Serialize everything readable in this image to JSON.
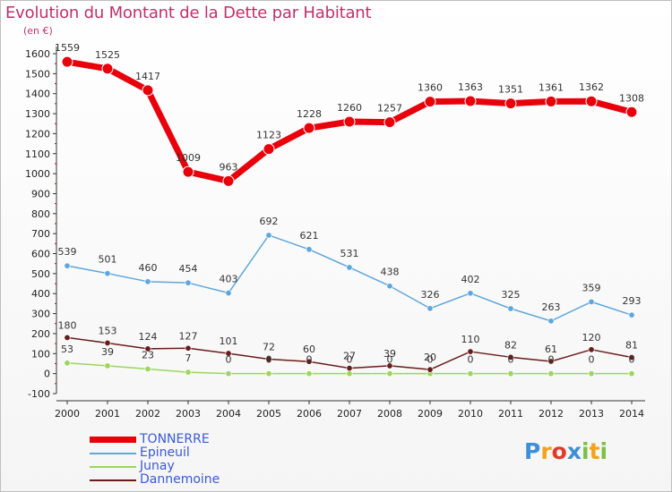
{
  "title": "Evolution du Montant de la Dette par Habitant",
  "unit": "(en €)",
  "brand": "Proxiti",
  "chart_data": {
    "type": "line",
    "title": "Evolution du Montant de la Dette par Habitant",
    "ylabel": "(en €)",
    "x": [
      "2000",
      "2001",
      "2002",
      "2003",
      "2004",
      "2005",
      "2006",
      "2007",
      "2008",
      "2009",
      "2010",
      "2011",
      "2012",
      "2013",
      "2014"
    ],
    "ylim": [
      -100,
      1600
    ],
    "yticks": [
      -100,
      0,
      100,
      200,
      300,
      400,
      500,
      600,
      700,
      800,
      900,
      1000,
      1100,
      1200,
      1300,
      1400,
      1500,
      1600
    ],
    "grid": false,
    "legend": "bottom-left",
    "series": [
      {
        "name": "TONNERRE",
        "color": "#e8000b",
        "values": [
          1559,
          1525,
          1417,
          1009,
          963,
          1123,
          1228,
          1260,
          1257,
          1360,
          1363,
          1351,
          1361,
          1362,
          1308
        ]
      },
      {
        "name": "Epineuil",
        "color": "#5ea7dd",
        "values": [
          539,
          501,
          460,
          454,
          403,
          692,
          621,
          531,
          438,
          326,
          402,
          325,
          263,
          359,
          293
        ]
      },
      {
        "name": "Junay",
        "color": "#9ad75a",
        "values": [
          53,
          39,
          23,
          7,
          0,
          0,
          0,
          0,
          0,
          0,
          0,
          0,
          0,
          0,
          0
        ]
      },
      {
        "name": "Dannemoine",
        "color": "#6b1b1b",
        "values": [
          180,
          153,
          124,
          127,
          101,
          72,
          60,
          27,
          39,
          20,
          110,
          82,
          61,
          120,
          81
        ]
      }
    ]
  }
}
